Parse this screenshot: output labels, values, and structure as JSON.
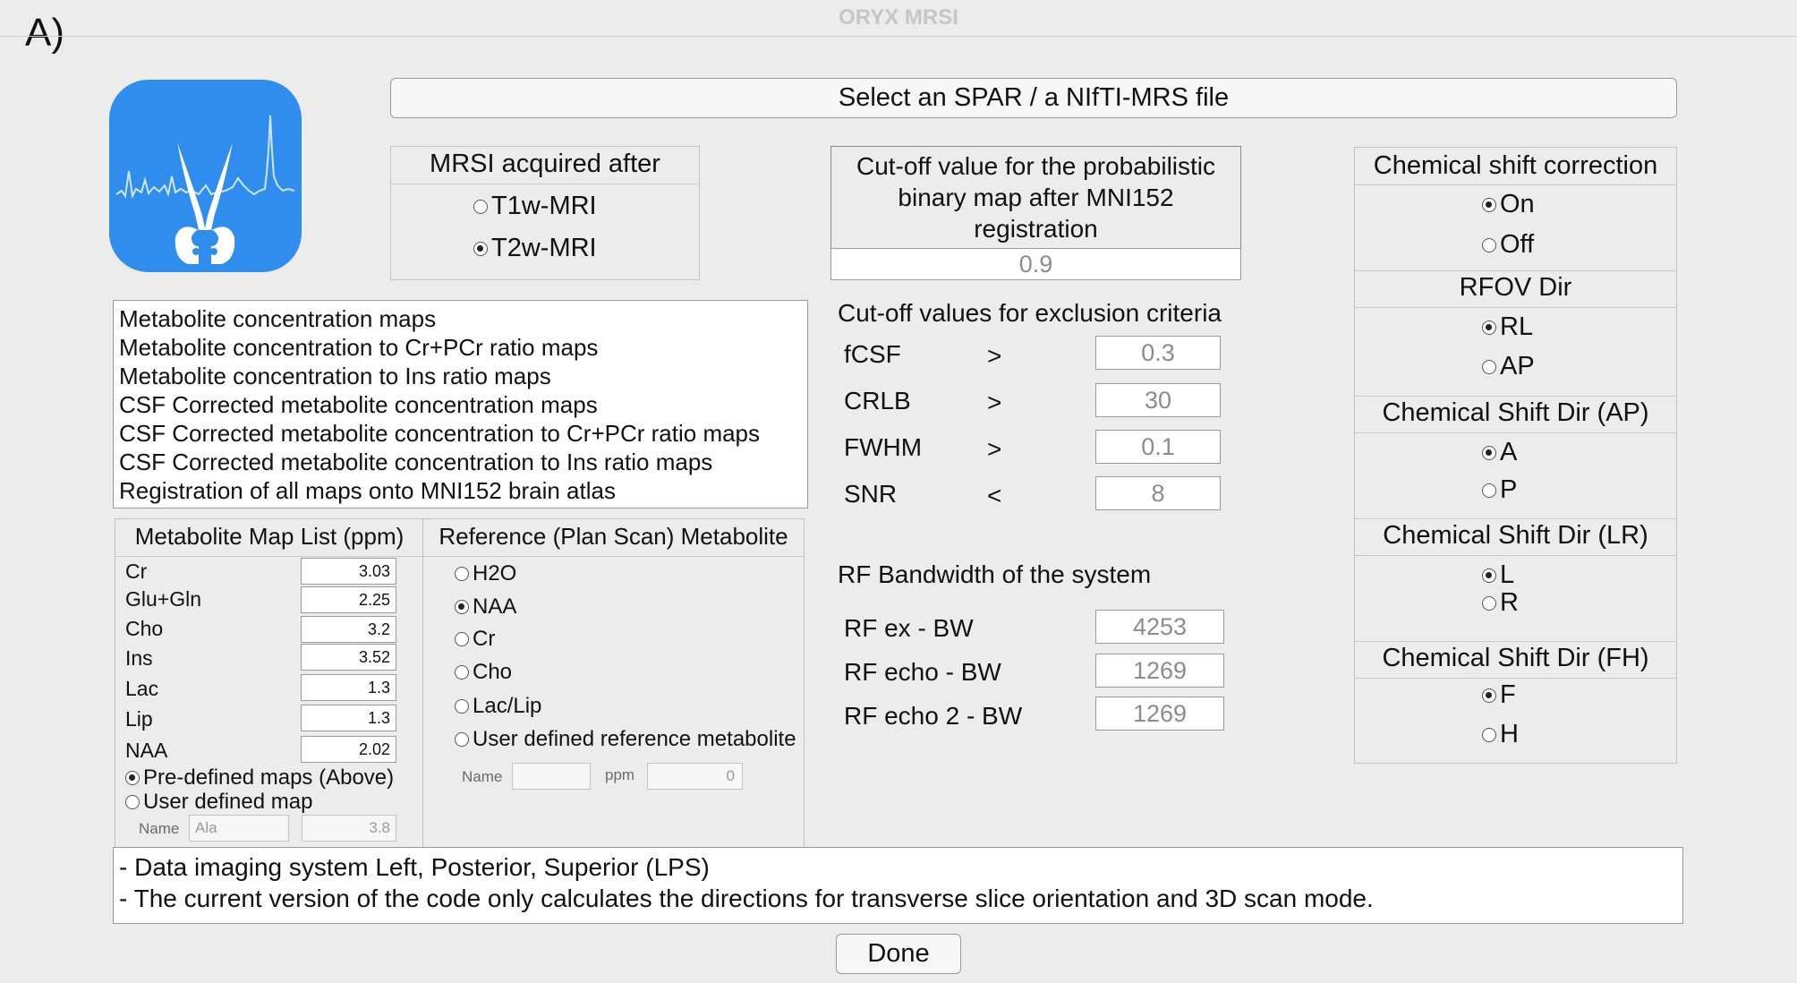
{
  "figure_label": "A)",
  "window_title": "ORYX MRSI",
  "select_file_button": "Select an SPAR / a NIfTI-MRS file",
  "acquired": {
    "title": "MRSI acquired after",
    "options": [
      {
        "label": "T1w-MRI",
        "selected": false
      },
      {
        "label": "T2w-MRI",
        "selected": true
      }
    ]
  },
  "cutoff": {
    "title": "Cut-off value for the probabilistic binary map after MNI152 registration",
    "value": "0.9"
  },
  "outputs": [
    "Metabolite concentration maps",
    "Metabolite concentration to Cr+PCr ratio maps",
    "Metabolite concentration to Ins ratio maps",
    "CSF Corrected metabolite concentration maps",
    "CSF Corrected metabolite concentration to Cr+PCr ratio maps",
    "CSF Corrected metabolite concentration to Ins ratio maps",
    "Registration of all maps onto MNI152 brain atlas"
  ],
  "exclusion": {
    "title": "Cut-off values for exclusion criteria",
    "rows": [
      {
        "name": "fCSF",
        "op": ">",
        "value": "0.3"
      },
      {
        "name": "CRLB",
        "op": ">",
        "value": "30"
      },
      {
        "name": "FWHM",
        "op": ">",
        "value": "0.1"
      },
      {
        "name": "SNR",
        "op": "<",
        "value": "8"
      }
    ]
  },
  "rf": {
    "title": "RF Bandwidth of the system",
    "rows": [
      {
        "name": "RF ex - BW",
        "value": "4253"
      },
      {
        "name": "RF echo - BW",
        "value": "1269"
      },
      {
        "name": "RF echo 2 - BW",
        "value": "1269"
      }
    ]
  },
  "metabolite_map": {
    "title": "Metabolite Map List (ppm)",
    "rows": [
      {
        "name": "Cr",
        "value": "3.03"
      },
      {
        "name": "Glu+Gln",
        "value": "2.25"
      },
      {
        "name": "Cho",
        "value": "3.2"
      },
      {
        "name": "Ins",
        "value": "3.52"
      },
      {
        "name": "Lac",
        "value": "1.3"
      },
      {
        "name": "Lip",
        "value": "1.3"
      },
      {
        "name": "NAA",
        "value": "2.02"
      }
    ],
    "options": [
      {
        "label": "Pre-defined maps (Above)",
        "selected": true
      },
      {
        "label": "User defined map",
        "selected": false
      }
    ],
    "user_name_label": "Name",
    "user_name_value": "Ala",
    "user_ppm_value": "3.8"
  },
  "reference": {
    "title": "Reference (Plan Scan) Metabolite",
    "options": [
      {
        "label": "H2O",
        "selected": false
      },
      {
        "label": "NAA",
        "selected": true
      },
      {
        "label": "Cr",
        "selected": false
      },
      {
        "label": "Cho",
        "selected": false
      },
      {
        "label": "Lac/Lip",
        "selected": false
      },
      {
        "label": "User defined reference metabolite",
        "selected": false
      }
    ],
    "name_label": "Name",
    "ppm_label": "ppm",
    "ppm_value": "0"
  },
  "right_panel": {
    "groups": [
      {
        "title": "Chemical shift correction",
        "options": [
          {
            "label": "On",
            "selected": true
          },
          {
            "label": "Off",
            "selected": false
          }
        ]
      },
      {
        "title": "RFOV Dir",
        "options": [
          {
            "label": "RL",
            "selected": true
          },
          {
            "label": "AP",
            "selected": false
          }
        ]
      },
      {
        "title": "Chemical Shift Dir (AP)",
        "options": [
          {
            "label": "A",
            "selected": true
          },
          {
            "label": "P",
            "selected": false
          }
        ]
      },
      {
        "title": "Chemical Shift Dir (LR)",
        "options": [
          {
            "label": "L",
            "selected": true
          },
          {
            "label": "R",
            "selected": false
          }
        ]
      },
      {
        "title": "Chemical Shift Dir (FH)",
        "options": [
          {
            "label": "F",
            "selected": true
          },
          {
            "label": "H",
            "selected": false
          }
        ]
      }
    ]
  },
  "notes": [
    "- Data imaging system Left, Posterior, Superior (LPS)",
    "- The current version of the code only calculates the directions for transverse slice orientation and 3D scan mode."
  ],
  "done_button": "Done",
  "colors": {
    "window_bg": "#ececec",
    "app_icon": "#2f8ded",
    "border": "#c2c2c2"
  }
}
